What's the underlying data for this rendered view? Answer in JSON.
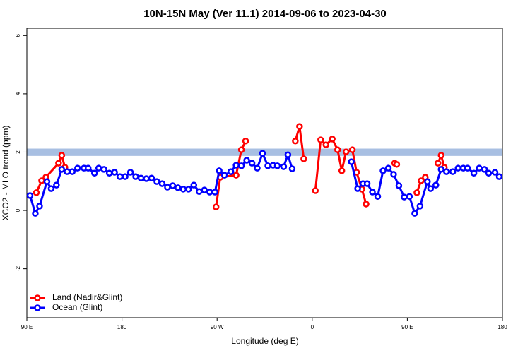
{
  "chart_data": {
    "type": "line",
    "title": "10N-15N May (Ver 11.1)   2014-09-06 to 2023-04-30",
    "x_label": "Longitude (deg E)",
    "y_label": "XCO2 - MLO trend (ppm)",
    "xlim": [
      90,
      540
    ],
    "xticks": [
      {
        "value": 90,
        "label": "90 E"
      },
      180,
      {
        "value": 270,
        "label": "90 W"
      },
      {
        "value": 360,
        "label": "0"
      },
      {
        "value": 450,
        "label": "90 E"
      },
      {
        "value": 540,
        "label": "180"
      }
    ],
    "ylim": [
      -3.68,
      6.25
    ],
    "yticks": [
      -2,
      0,
      2,
      4,
      6
    ],
    "legend": "bottom-left",
    "reference_band": {
      "ylim": [
        1.87,
        2.12
      ],
      "color": "#a8bfe2"
    },
    "series": [
      {
        "name": "Land (Nadir&Glint)",
        "color": "#ff0000",
        "x": [
          99,
          104,
          108,
          120,
          123,
          126,
          null,
          269,
          273,
          288,
          293,
          297,
          null,
          344,
          348,
          352,
          null,
          363,
          368,
          373,
          379,
          384,
          388,
          392,
          398,
          402,
          407,
          411,
          null,
          438,
          440,
          null,
          459,
          463,
          467,
          null,
          479,
          482,
          485
        ],
        "values": [
          0.61,
          1.02,
          1.14,
          1.62,
          1.89,
          1.48,
          null,
          0.12,
          1.14,
          1.21,
          2.08,
          2.38,
          null,
          2.38,
          2.88,
          1.77,
          null,
          0.68,
          2.42,
          2.25,
          2.45,
          2.08,
          1.36,
          2.01,
          2.08,
          1.31,
          0.73,
          0.22,
          null,
          1.62,
          1.58,
          null,
          0.61,
          1.02,
          1.14,
          null,
          1.62,
          1.89,
          1.48
        ]
      },
      {
        "name": "Ocean (Glint)",
        "color": "#0000ff",
        "x": [
          93,
          98,
          102,
          109,
          113,
          118,
          123,
          128,
          133,
          138,
          144,
          148,
          154,
          158,
          163,
          168,
          173,
          178,
          183,
          188,
          193,
          198,
          203,
          208,
          213,
          218,
          223,
          228,
          233,
          238,
          243,
          248,
          253,
          258,
          263,
          268,
          272,
          277,
          283,
          288,
          293,
          298,
          303,
          308,
          313,
          318,
          323,
          327,
          333,
          337,
          341,
          null,
          397,
          403,
          408,
          412,
          417,
          422,
          427,
          432,
          437,
          442,
          447,
          452,
          457,
          462,
          469,
          472,
          477,
          482,
          487,
          493,
          498,
          503,
          507,
          513,
          518,
          523,
          527,
          533,
          537
        ],
        "values": [
          0.51,
          -0.1,
          0.15,
          0.99,
          0.75,
          0.87,
          1.41,
          1.33,
          1.33,
          1.45,
          1.45,
          1.45,
          1.28,
          1.45,
          1.41,
          1.28,
          1.31,
          1.16,
          1.16,
          1.31,
          1.16,
          1.11,
          1.09,
          1.11,
          0.99,
          0.92,
          0.8,
          0.85,
          0.78,
          0.73,
          0.73,
          0.87,
          0.65,
          0.7,
          0.63,
          0.63,
          1.36,
          1.21,
          1.33,
          1.55,
          1.53,
          1.72,
          1.62,
          1.45,
          1.96,
          1.53,
          1.55,
          1.53,
          1.5,
          1.91,
          1.43,
          null,
          1.67,
          0.75,
          0.92,
          0.92,
          0.63,
          0.48,
          1.36,
          1.45,
          1.24,
          0.85,
          0.46,
          0.48,
          -0.1,
          0.15,
          0.99,
          0.75,
          0.87,
          1.41,
          1.33,
          1.33,
          1.45,
          1.45,
          1.45,
          1.28,
          1.45,
          1.41,
          1.28,
          1.31,
          1.16
        ]
      }
    ]
  }
}
